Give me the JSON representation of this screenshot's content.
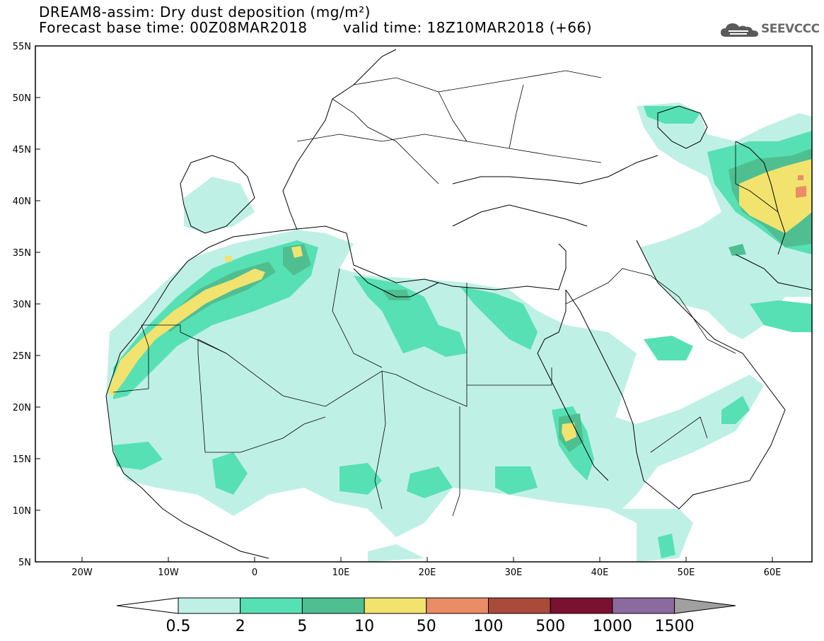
{
  "header": {
    "title_line1": "DREAM8-assim: Dry dust deposition (mg/m²)",
    "title_line2": "Forecast base time: 00Z08MAR2018",
    "valid_time": "valid time: 18Z10MAR2018 (+66)",
    "logo_text": "SEEVCCC",
    "logo_icon": "cloud-logo-icon"
  },
  "map": {
    "lon_range": [
      -25,
      65
    ],
    "lat_range": [
      5,
      55
    ],
    "lon_ticks": [
      "20W",
      "10W",
      "0",
      "10E",
      "20E",
      "30E",
      "40E",
      "50E",
      "60E"
    ],
    "lat_ticks": [
      "55N",
      "50N",
      "45N",
      "40N",
      "35N",
      "30N",
      "25N",
      "20N",
      "15N",
      "10N",
      "5N"
    ],
    "field_colors": [
      "#bff0e6",
      "#57e0b3",
      "#4fbf92",
      "#f2e36e",
      "#ea8c66",
      "#a94a3a",
      "#7a1133",
      "#8b6b9e"
    ]
  },
  "legend": {
    "labels": [
      "0.5",
      "2",
      "5",
      "10",
      "50",
      "100",
      "500",
      "1000",
      "1500"
    ],
    "colors": [
      "#bff0e6",
      "#57e0b3",
      "#4fbf92",
      "#f2e36e",
      "#ea8c66",
      "#a94a3a",
      "#7a1133",
      "#8b6b9e"
    ],
    "below_color": "#ffffff",
    "above_color": "#a0a0a0"
  }
}
